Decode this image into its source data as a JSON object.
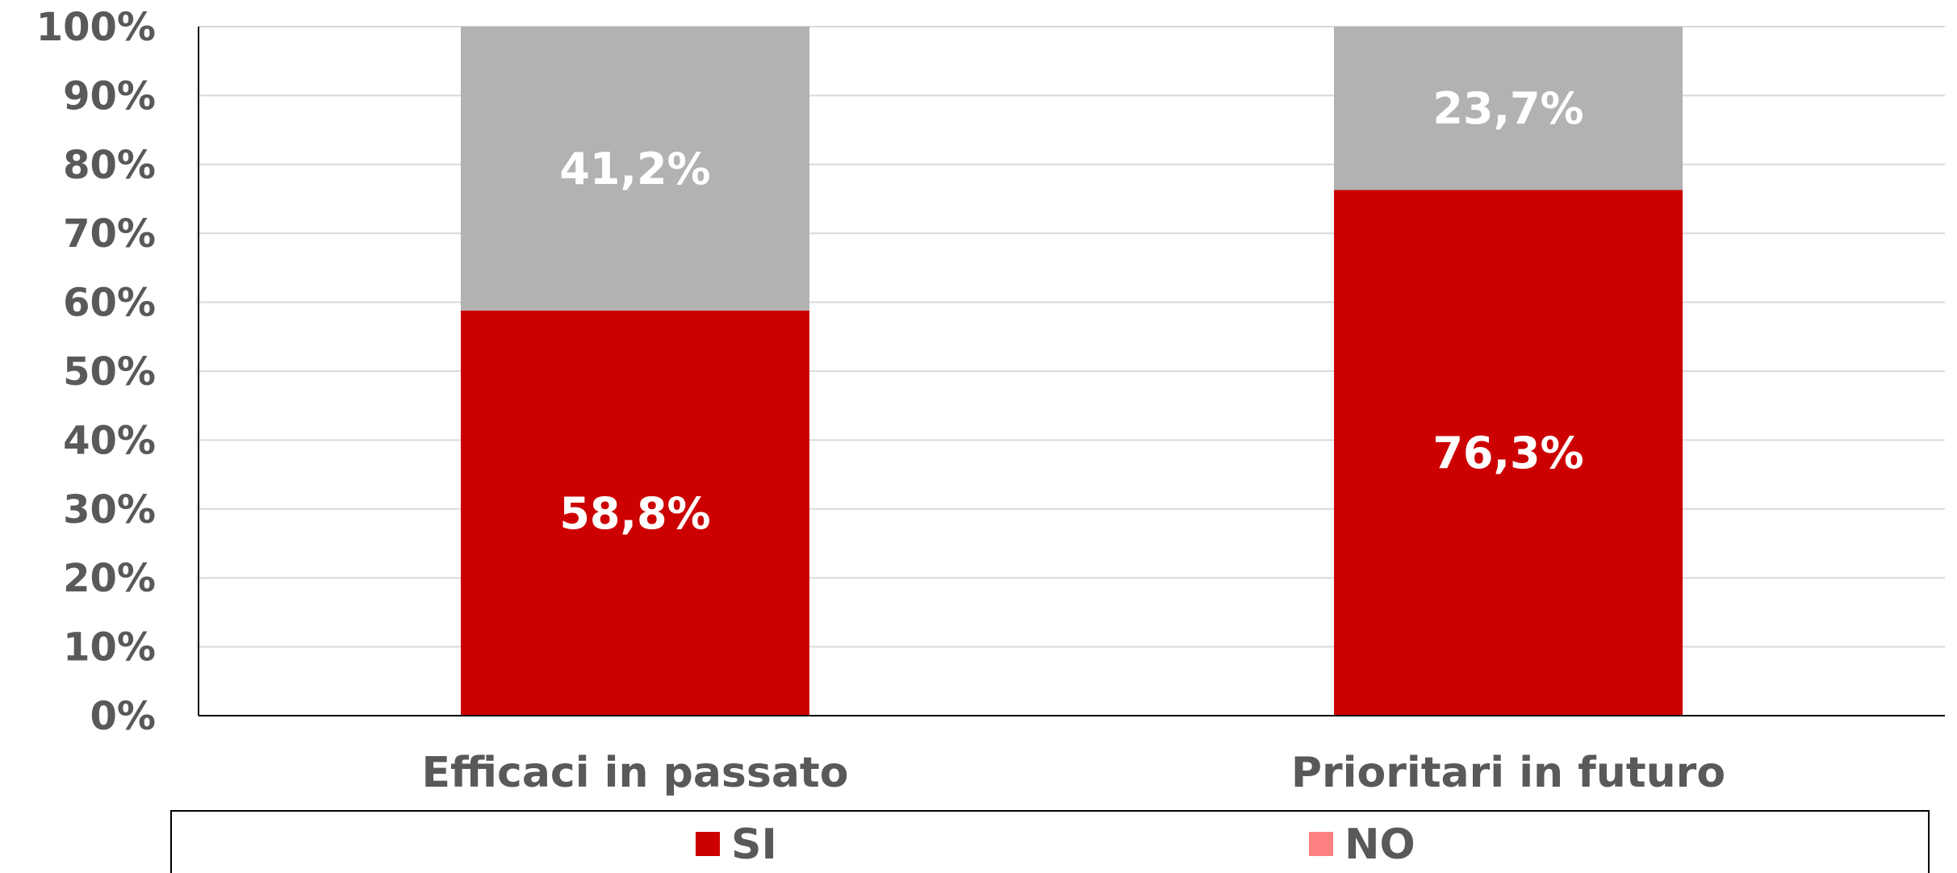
{
  "chart_data": {
    "type": "bar",
    "stacked": true,
    "categories": [
      "Efficaci in passato",
      "Prioritari in futuro"
    ],
    "series": [
      {
        "name": "SI",
        "values": [
          58.8,
          76.3
        ],
        "color": "#cc0000",
        "labels": [
          "58,8%",
          "76,3%"
        ]
      },
      {
        "name": "NO",
        "values": [
          41.2,
          23.7
        ],
        "color": "#b2b2b2",
        "legend_color": "#ff8080",
        "labels": [
          "41,2%",
          "23,7%"
        ]
      }
    ],
    "ylim": [
      0,
      100
    ],
    "yticks": [
      0,
      10,
      20,
      30,
      40,
      50,
      60,
      70,
      80,
      90,
      100
    ],
    "ytick_labels": [
      "0%",
      "10%",
      "20%",
      "30%",
      "40%",
      "50%",
      "60%",
      "70%",
      "80%",
      "90%",
      "100%"
    ],
    "grid": true,
    "legend_position": "bottom",
    "title": "",
    "xlabel": "",
    "ylabel": ""
  }
}
